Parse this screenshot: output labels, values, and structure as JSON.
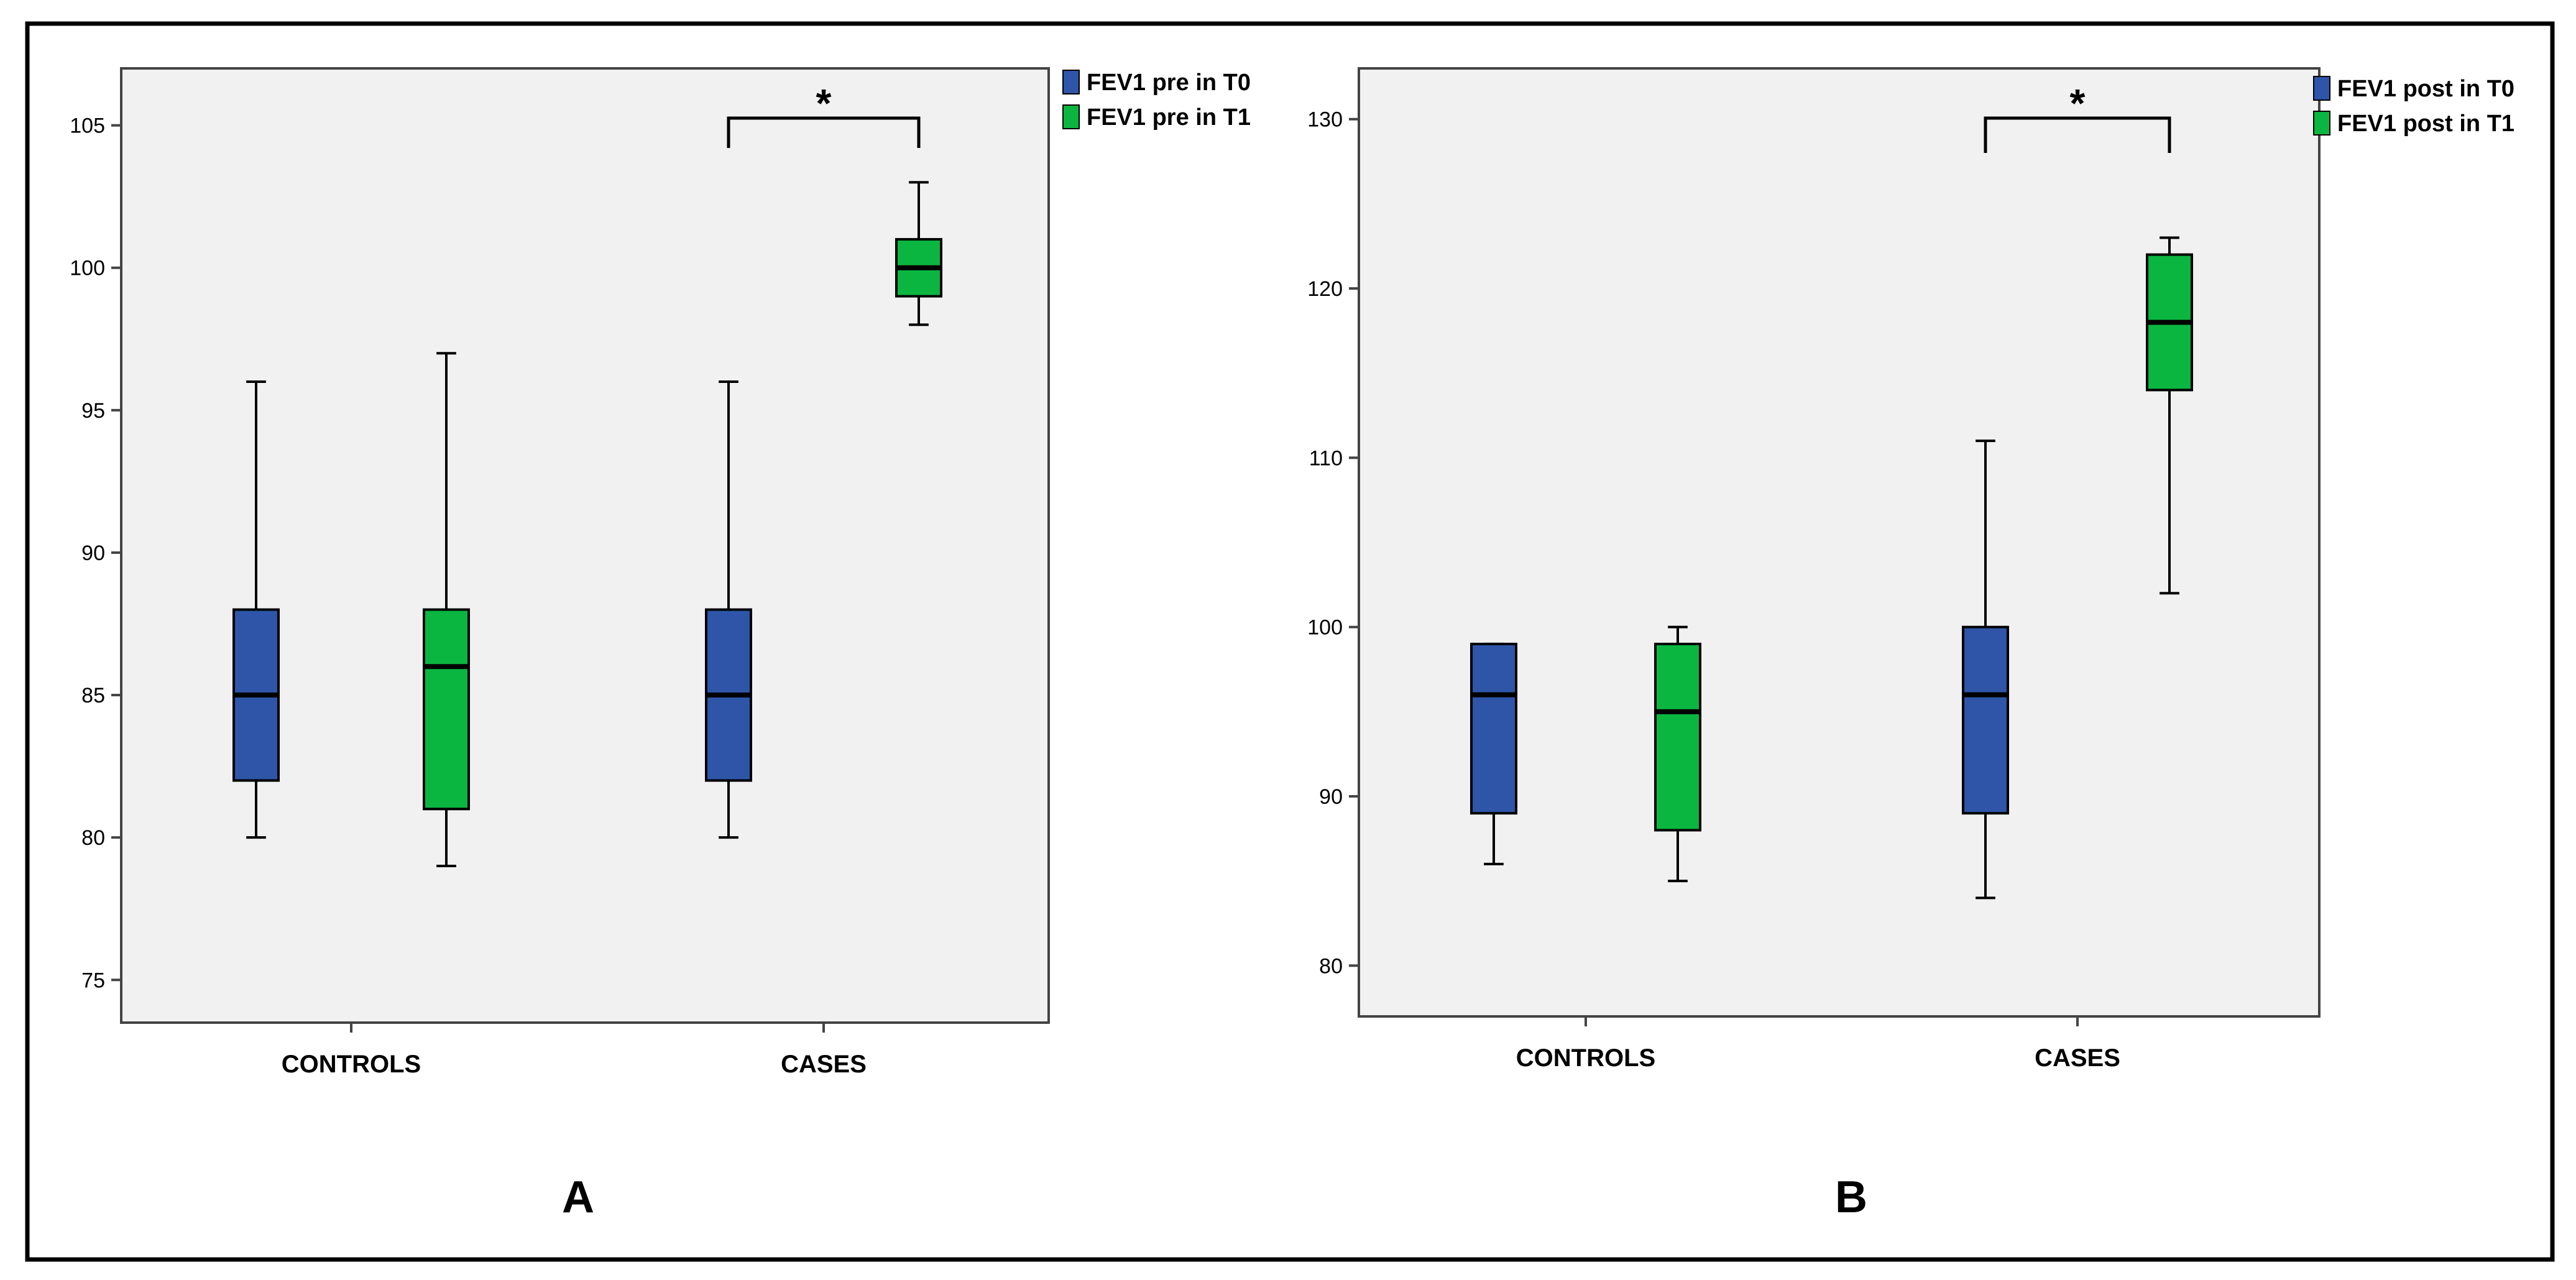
{
  "colors": {
    "t0": "#2e55a8",
    "t1": "#0ab640",
    "plot_bg": "#f1f1f1"
  },
  "chart_data": [
    {
      "type": "box",
      "panel_label": "A",
      "categories": [
        "CONTROLS",
        "CASES"
      ],
      "ylim": [
        73.5,
        107
      ],
      "yticks": [
        75,
        80,
        85,
        90,
        95,
        100,
        105
      ],
      "legend": [
        "FEV1 pre in T0",
        "FEV1 pre in T1"
      ],
      "series": [
        {
          "name": "FEV1 pre in T0",
          "color": "#2e55a8",
          "boxes": [
            {
              "min": 80,
              "q1": 82,
              "median": 85,
              "q3": 88,
              "max": 96
            },
            {
              "min": 80,
              "q1": 82,
              "median": 85,
              "q3": 88,
              "max": 96
            }
          ]
        },
        {
          "name": "FEV1 pre in T1",
          "color": "#0ab640",
          "boxes": [
            {
              "min": 79,
              "q1": 81,
              "median": 86,
              "q3": 88,
              "max": 97
            },
            {
              "min": 98,
              "q1": 99,
              "median": 100,
              "q3": 101,
              "max": 103
            }
          ]
        }
      ],
      "significance": {
        "category": "CASES",
        "label": "*"
      }
    },
    {
      "type": "box",
      "panel_label": "B",
      "categories": [
        "CONTROLS",
        "CASES"
      ],
      "ylim": [
        77,
        133
      ],
      "yticks": [
        80,
        90,
        100,
        110,
        120,
        130
      ],
      "legend": [
        "FEV1 post in T0",
        "FEV1 post in T1"
      ],
      "series": [
        {
          "name": "FEV1 post in T0",
          "color": "#2e55a8",
          "boxes": [
            {
              "min": 86,
              "q1": 89,
              "median": 96,
              "q3": 99,
              "max": 99
            },
            {
              "min": 84,
              "q1": 89,
              "median": 96,
              "q3": 100,
              "max": 111
            }
          ]
        },
        {
          "name": "FEV1 post in T1",
          "color": "#0ab640",
          "boxes": [
            {
              "min": 85,
              "q1": 88,
              "median": 95,
              "q3": 99,
              "max": 100
            },
            {
              "min": 102,
              "q1": 114,
              "median": 118,
              "q3": 122,
              "max": 123
            }
          ]
        }
      ],
      "significance": {
        "category": "CASES",
        "label": "*"
      }
    }
  ]
}
